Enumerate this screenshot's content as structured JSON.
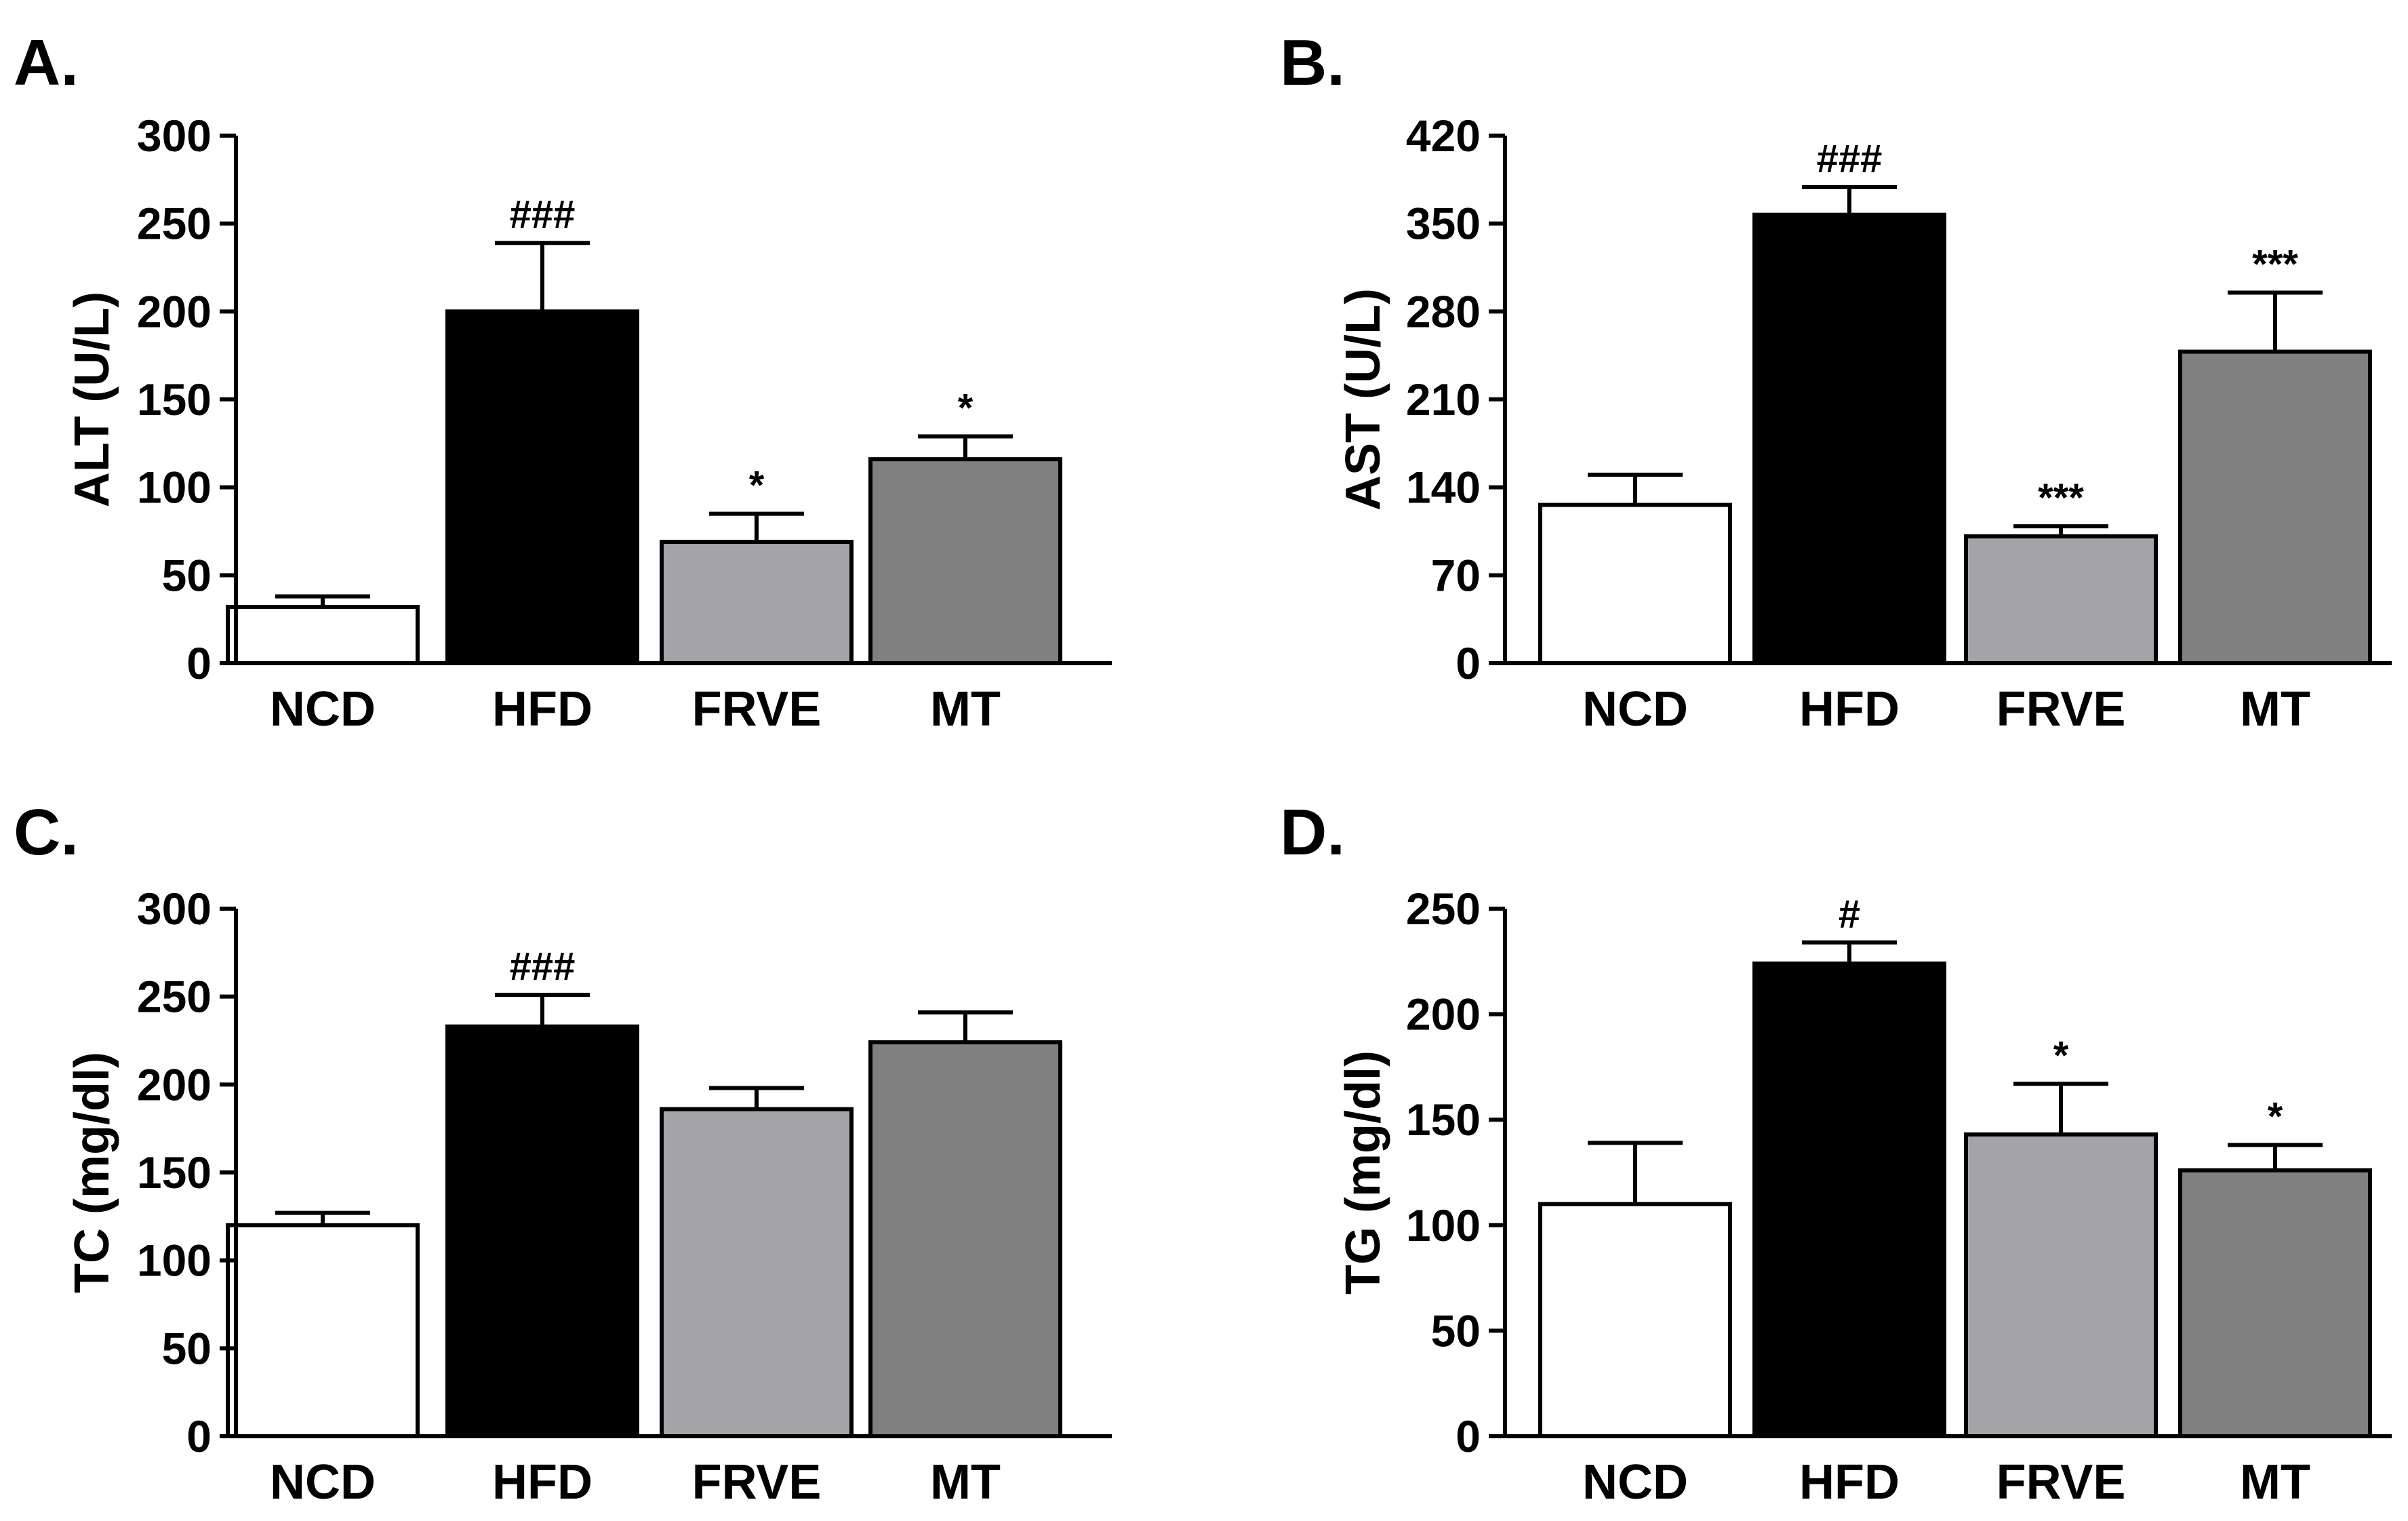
{
  "chart_data": [
    {
      "id": "A",
      "type": "bar",
      "panel_label": "A.",
      "ylabel": "ALT  (U/L)",
      "categories": [
        "NCD",
        "HFD",
        "FRVE",
        "MT"
      ],
      "values": [
        32,
        200,
        69,
        116
      ],
      "errors": [
        6,
        39,
        16,
        13
      ],
      "significance": [
        "",
        "###",
        "*",
        "*"
      ],
      "ylim": [
        0,
        300
      ],
      "yticks": [
        "0",
        "50",
        "100",
        "150",
        "200",
        "250",
        "300"
      ],
      "bar_colors": [
        "#ffffff",
        "#000000",
        "#a3a3a8",
        "#808080"
      ]
    },
    {
      "id": "B",
      "type": "bar",
      "panel_label": "B.",
      "ylabel": "AST  (U/L)",
      "categories": [
        "NCD",
        "HFD",
        "FRVE",
        "MT"
      ],
      "values": [
        126,
        357,
        101,
        248
      ],
      "errors": [
        24,
        22,
        8,
        47
      ],
      "significance": [
        "",
        "###",
        "***",
        "***"
      ],
      "ylim": [
        0,
        420
      ],
      "yticks": [
        "0",
        "70",
        "140",
        "210",
        "280",
        "350",
        "420"
      ],
      "bar_colors": [
        "#ffffff",
        "#000000",
        "#a3a3a8",
        "#808080"
      ]
    },
    {
      "id": "C",
      "type": "bar",
      "panel_label": "C.",
      "ylabel": "TC (mg/dl)",
      "categories": [
        "NCD",
        "HFD",
        "FRVE",
        "MT"
      ],
      "values": [
        120,
        233,
        186,
        224
      ],
      "errors": [
        7,
        18,
        12,
        17
      ],
      "significance": [
        "",
        "###",
        "",
        ""
      ],
      "ylim": [
        0,
        300
      ],
      "yticks": [
        "0",
        "50",
        "100",
        "150",
        "200",
        "250",
        "300"
      ],
      "bar_colors": [
        "#ffffff",
        "#000000",
        "#a3a3a8",
        "#808080"
      ]
    },
    {
      "id": "D",
      "type": "bar",
      "panel_label": "D.",
      "ylabel": "TG (mg/dl)",
      "categories": [
        "NCD",
        "HFD",
        "FRVE",
        "MT"
      ],
      "values": [
        110,
        224,
        143,
        126
      ],
      "errors": [
        29,
        10,
        24,
        12
      ],
      "significance": [
        "",
        "#",
        "*",
        "*"
      ],
      "ylim": [
        0,
        250
      ],
      "yticks": [
        "0",
        "50",
        "100",
        "150",
        "200",
        "250"
      ],
      "bar_colors": [
        "#ffffff",
        "#000000",
        "#a3a3a8",
        "#808080"
      ]
    }
  ]
}
